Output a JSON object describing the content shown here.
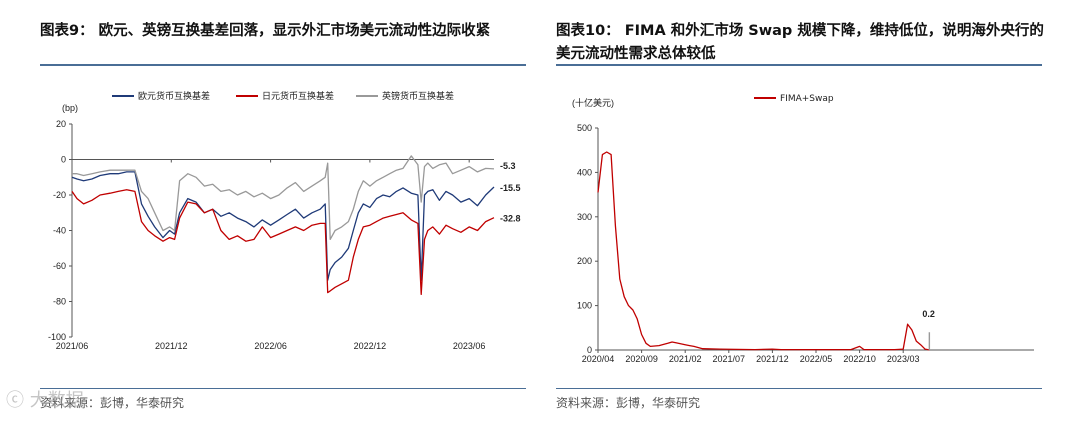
{
  "left": {
    "title": "图表9：  欧元、英镑互换基差回落，显示外汇市场美元流动性边际收紧",
    "source": "资料来源：彭博，华泰研究",
    "chart_data": {
      "type": "line",
      "unit_label": "(bp)",
      "ylim": [
        -100,
        20
      ],
      "yticks": [
        20,
        0,
        -20,
        -40,
        -60,
        -80,
        -100
      ],
      "xlim": [
        0,
        25.5
      ],
      "x_ticks": [
        {
          "pos": 0,
          "label": "2021/06"
        },
        {
          "pos": 6,
          "label": "2021/12"
        },
        {
          "pos": 12,
          "label": "2022/06"
        },
        {
          "pos": 18,
          "label": "2022/12"
        },
        {
          "pos": 24,
          "label": "2023/06"
        }
      ],
      "legend": [
        "欧元货币互换基差",
        "日元货币互换基差",
        "英镑货币互换基差"
      ],
      "series": [
        {
          "name": "欧元货币互换基差",
          "color": "#1f3a78",
          "end_label": "-15.5",
          "x": [
            0,
            0.3,
            0.7,
            1.2,
            1.7,
            2.3,
            2.8,
            3.3,
            3.8,
            4.2,
            4.6,
            5.0,
            5.5,
            5.9,
            6.2,
            6.5,
            7.0,
            7.5,
            8.0,
            8.5,
            9.0,
            9.5,
            10.0,
            10.5,
            11.0,
            11.5,
            12.0,
            12.5,
            13.0,
            13.5,
            14.0,
            14.5,
            15.0,
            15.3,
            15.45,
            15.6,
            15.9,
            16.3,
            16.7,
            17.0,
            17.3,
            17.6,
            18.0,
            18.4,
            18.8,
            19.2,
            19.6,
            20.0,
            20.5,
            20.9,
            21.1,
            21.3,
            21.5,
            21.8,
            22.2,
            22.6,
            23.0,
            23.5,
            24.0,
            24.5,
            25.0,
            25.5
          ],
          "y": [
            -10,
            -11,
            -12,
            -11,
            -9,
            -8,
            -8,
            -7,
            -7,
            -25,
            -32,
            -38,
            -44,
            -40,
            -42,
            -30,
            -22,
            -24,
            -30,
            -28,
            -32,
            -30,
            -33,
            -35,
            -38,
            -34,
            -37,
            -34,
            -31,
            -28,
            -33,
            -30,
            -28,
            -25,
            -68,
            -62,
            -58,
            -55,
            -50,
            -40,
            -30,
            -25,
            -27,
            -22,
            -20,
            -21,
            -18,
            -16,
            -19,
            -20,
            -68,
            -20,
            -18,
            -17,
            -23,
            -18,
            -20,
            -24,
            -22,
            -26,
            -20,
            -15.5
          ]
        },
        {
          "name": "日元货币互换基差",
          "color": "#c00000",
          "end_label": "-32.8",
          "x": [
            0,
            0.3,
            0.7,
            1.2,
            1.7,
            2.3,
            2.8,
            3.3,
            3.8,
            4.2,
            4.6,
            5.0,
            5.5,
            5.9,
            6.2,
            6.5,
            7.0,
            7.5,
            8.0,
            8.5,
            9.0,
            9.5,
            10.0,
            10.5,
            11.0,
            11.5,
            12.0,
            12.5,
            13.0,
            13.5,
            14.0,
            14.5,
            15.0,
            15.3,
            15.45,
            15.6,
            15.9,
            16.3,
            16.7,
            17.0,
            17.3,
            17.6,
            18.0,
            18.4,
            18.8,
            19.2,
            19.6,
            20.0,
            20.5,
            20.9,
            21.1,
            21.3,
            21.5,
            21.8,
            22.2,
            22.6,
            23.0,
            23.5,
            24.0,
            24.5,
            25.0,
            25.5
          ],
          "y": [
            -18,
            -22,
            -25,
            -23,
            -20,
            -19,
            -18,
            -17,
            -18,
            -35,
            -40,
            -43,
            -46,
            -44,
            -45,
            -33,
            -24,
            -25,
            -30,
            -28,
            -40,
            -45,
            -43,
            -46,
            -45,
            -38,
            -44,
            -42,
            -40,
            -38,
            -40,
            -37,
            -36,
            -36,
            -75,
            -74,
            -72,
            -70,
            -68,
            -55,
            -45,
            -38,
            -37,
            -35,
            -33,
            -32,
            -31,
            -30,
            -34,
            -36,
            -76,
            -45,
            -40,
            -38,
            -42,
            -37,
            -39,
            -41,
            -38,
            -40,
            -35,
            -32.8
          ]
        },
        {
          "name": "英镑货币互换基差",
          "color": "#999999",
          "end_label": "-5.3",
          "x": [
            0,
            0.3,
            0.7,
            1.2,
            1.7,
            2.3,
            2.8,
            3.3,
            3.8,
            4.2,
            4.6,
            5.0,
            5.5,
            5.9,
            6.2,
            6.5,
            7.0,
            7.5,
            8.0,
            8.5,
            9.0,
            9.5,
            10.0,
            10.5,
            11.0,
            11.5,
            12.0,
            12.5,
            13.0,
            13.5,
            14.0,
            14.5,
            15.0,
            15.3,
            15.45,
            15.6,
            15.9,
            16.3,
            16.7,
            17.0,
            17.3,
            17.6,
            18.0,
            18.4,
            18.8,
            19.2,
            19.6,
            20.0,
            20.5,
            20.9,
            21.1,
            21.3,
            21.5,
            21.8,
            22.2,
            22.6,
            23.0,
            23.5,
            24.0,
            24.5,
            25.0,
            25.5
          ],
          "y": [
            -8,
            -8,
            -9,
            -8,
            -7,
            -6,
            -6,
            -6,
            -6,
            -18,
            -22,
            -30,
            -40,
            -38,
            -40,
            -12,
            -8,
            -10,
            -15,
            -14,
            -18,
            -17,
            -20,
            -18,
            -21,
            -19,
            -22,
            -20,
            -16,
            -13,
            -18,
            -15,
            -12,
            -10,
            -2,
            -45,
            -40,
            -38,
            -35,
            -28,
            -18,
            -12,
            -15,
            -12,
            -10,
            -8,
            -6,
            -5,
            2,
            -3,
            -24,
            -4,
            -2,
            -5,
            -3,
            -2,
            -8,
            -6,
            -4,
            -7,
            -5,
            -5.3
          ]
        }
      ]
    }
  },
  "right": {
    "title": "图表10：  FIMA 和外汇市场 Swap 规模下降，维持低位，说明海外央行的美元流动性需求总体较低",
    "source": "资料来源：彭博，华泰研究",
    "chart_data": {
      "type": "line",
      "unit_label": "(十亿美元)",
      "ylim": [
        0,
        500
      ],
      "yticks": [
        500,
        400,
        300,
        200,
        100,
        0
      ],
      "xlim": [
        0,
        50
      ],
      "x_ticks": [
        {
          "pos": 0,
          "label": "2020/04"
        },
        {
          "pos": 5,
          "label": "2020/09"
        },
        {
          "pos": 10,
          "label": "2021/02"
        },
        {
          "pos": 15,
          "label": "2021/07"
        },
        {
          "pos": 20,
          "label": "2021/12"
        },
        {
          "pos": 25,
          "label": "2022/05"
        },
        {
          "pos": 30,
          "label": "2022/10"
        },
        {
          "pos": 35,
          "label": "2023/03"
        }
      ],
      "legend": [
        "FIMA+Swap"
      ],
      "series": [
        {
          "name": "FIMA+Swap",
          "color": "#c00000",
          "end_label": "0.2",
          "x": [
            0,
            0.5,
            1,
            1.5,
            2,
            2.5,
            3,
            3.5,
            4,
            4.5,
            5,
            5.5,
            6,
            7,
            8,
            8.5,
            9,
            10,
            10.5,
            11,
            12,
            14,
            18,
            20,
            21,
            22,
            29,
            30,
            30.5,
            31,
            34,
            35,
            35.5,
            36,
            36.5,
            37,
            37.5,
            38
          ],
          "y": [
            355,
            440,
            446,
            440,
            280,
            160,
            120,
            100,
            90,
            70,
            35,
            15,
            8,
            10,
            15,
            18,
            16,
            12,
            10,
            8,
            3,
            2,
            1,
            2,
            1,
            1,
            1,
            8,
            1,
            1,
            1,
            2,
            58,
            45,
            20,
            12,
            2,
            0.2
          ]
        }
      ],
      "marker": {
        "x": 38,
        "y": 40
      }
    }
  }
}
